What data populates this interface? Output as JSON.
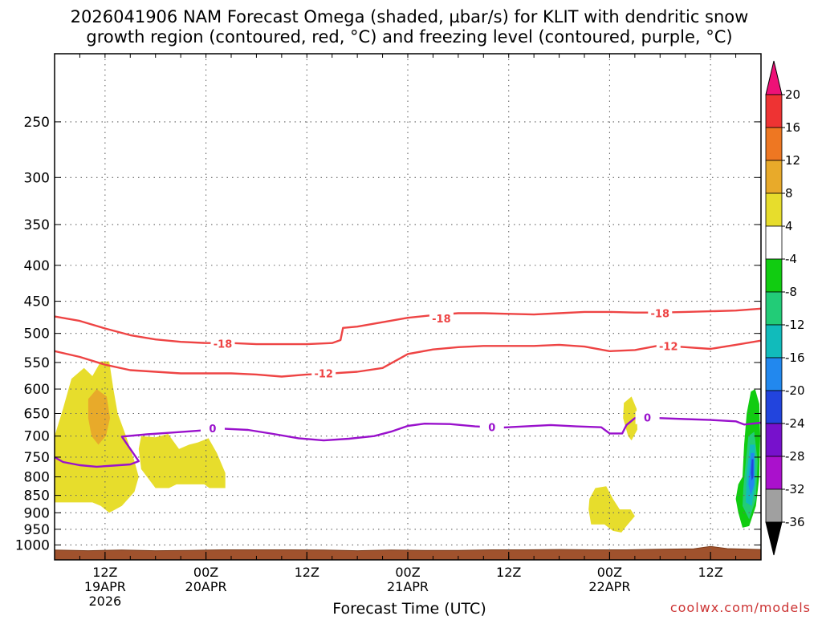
{
  "chart_data": {
    "type": "time-height",
    "title_lines": [
      "2026041906 NAM Forecast Omega (shaded, µbar/s) for KLIT with dendritic snow",
      "growth region (contoured, red, °C) and freezing level (contoured, purple, °C)"
    ],
    "xlabel": "Forecast Time (UTC)",
    "credit": "coolwx.com/models",
    "x_range_hours": [
      6,
      90
    ],
    "x_ticks": [
      {
        "hour": 12,
        "lines": [
          "12Z",
          "19APR",
          "2026"
        ]
      },
      {
        "hour": 24,
        "lines": [
          "00Z",
          "20APR"
        ]
      },
      {
        "hour": 36,
        "lines": [
          "12Z"
        ]
      },
      {
        "hour": 48,
        "lines": [
          "00Z",
          "21APR"
        ]
      },
      {
        "hour": 60,
        "lines": [
          "12Z"
        ]
      },
      {
        "hour": 72,
        "lines": [
          "00Z",
          "22APR"
        ]
      },
      {
        "hour": 84,
        "lines": [
          "12Z"
        ]
      }
    ],
    "y_scale": "log-pressure",
    "y_range_mb": [
      200,
      1050
    ],
    "y_ticks": [
      "250",
      "300",
      "350",
      "400",
      "450",
      "500",
      "550",
      "600",
      "650",
      "700",
      "750",
      "800",
      "850",
      "900",
      "950",
      "1000"
    ],
    "grid": "dotted",
    "colorbar": {
      "unit": "µbar/s",
      "labels": [
        "20",
        "16",
        "12",
        "8",
        "4",
        "-4",
        "-8",
        "-12",
        "-16",
        "-20",
        "-24",
        "-28",
        "-32",
        "-36"
      ],
      "bins": [
        {
          "range": [
            20,
            24
          ],
          "color": "#ee1177"
        },
        {
          "range": [
            16,
            20
          ],
          "color": "#ee3333"
        },
        {
          "range": [
            12,
            16
          ],
          "color": "#ee7722"
        },
        {
          "range": [
            8,
            12
          ],
          "color": "#e8aa2a"
        },
        {
          "range": [
            4,
            8
          ],
          "color": "#e7dd2c"
        },
        {
          "range": [
            -4,
            4
          ],
          "color": "#ffffff"
        },
        {
          "range": [
            -8,
            -4
          ],
          "color": "#11cc11"
        },
        {
          "range": [
            -12,
            -8
          ],
          "color": "#22cc77"
        },
        {
          "range": [
            -16,
            -12
          ],
          "color": "#11bbbb"
        },
        {
          "range": [
            -20,
            -16
          ],
          "color": "#2288ee"
        },
        {
          "range": [
            -24,
            -20
          ],
          "color": "#2244dd"
        },
        {
          "range": [
            -28,
            -24
          ],
          "color": "#7711cc"
        },
        {
          "range": [
            -32,
            -28
          ],
          "color": "#aa11cc"
        },
        {
          "range": [
            -36,
            -32
          ],
          "color": "#a0a0a0"
        },
        {
          "range": [
            -40,
            -36
          ],
          "color": "#000000"
        }
      ]
    },
    "contours": [
      {
        "level": "-18",
        "color": "#ee4444",
        "points": [
          [
            6,
            473
          ],
          [
            9,
            480
          ],
          [
            12,
            492
          ],
          [
            15,
            503
          ],
          [
            18,
            510
          ],
          [
            21,
            514
          ],
          [
            24,
            516
          ],
          [
            27,
            516
          ],
          [
            30,
            518
          ],
          [
            33,
            518
          ],
          [
            36,
            518
          ],
          [
            39,
            516
          ],
          [
            40,
            511
          ],
          [
            40.3,
            491
          ],
          [
            42,
            489
          ],
          [
            45,
            482
          ],
          [
            48,
            475
          ],
          [
            51,
            471
          ],
          [
            54,
            468
          ],
          [
            57,
            468
          ],
          [
            60,
            469
          ],
          [
            63,
            470
          ],
          [
            66,
            468
          ],
          [
            69,
            466
          ],
          [
            72,
            466
          ],
          [
            75,
            467
          ],
          [
            78,
            467
          ],
          [
            81,
            466
          ],
          [
            84,
            465
          ],
          [
            87,
            464
          ],
          [
            90,
            461
          ]
        ],
        "labels": [
          {
            "hour": 26,
            "mb": 517
          },
          {
            "hour": 52,
            "mb": 476
          },
          {
            "hour": 78,
            "mb": 468
          }
        ]
      },
      {
        "level": "-12",
        "color": "#ee4444",
        "points": [
          [
            6,
            530
          ],
          [
            9,
            540
          ],
          [
            12,
            554
          ],
          [
            15,
            564
          ],
          [
            18,
            567
          ],
          [
            21,
            570
          ],
          [
            24,
            570
          ],
          [
            27,
            570
          ],
          [
            30,
            572
          ],
          [
            33,
            576
          ],
          [
            36,
            572
          ],
          [
            39,
            570
          ],
          [
            42,
            567
          ],
          [
            45,
            560
          ],
          [
            48,
            535
          ],
          [
            51,
            527
          ],
          [
            54,
            523
          ],
          [
            57,
            521
          ],
          [
            60,
            521
          ],
          [
            63,
            521
          ],
          [
            66,
            519
          ],
          [
            69,
            522
          ],
          [
            72,
            530
          ],
          [
            75,
            528
          ],
          [
            78,
            520
          ],
          [
            81,
            523
          ],
          [
            84,
            526
          ],
          [
            87,
            519
          ],
          [
            90,
            512
          ]
        ],
        "labels": [
          {
            "hour": 38,
            "mb": 570
          },
          {
            "hour": 79,
            "mb": 521
          }
        ]
      },
      {
        "level": "0",
        "color": "#9911cc",
        "points": [
          [
            6,
            750
          ],
          [
            7,
            762
          ],
          [
            9,
            770
          ],
          [
            11,
            774
          ],
          [
            13,
            771
          ],
          [
            15,
            768
          ],
          [
            16,
            760
          ],
          [
            15,
            730
          ],
          [
            14,
            701
          ],
          [
            17,
            696
          ],
          [
            20,
            692
          ],
          [
            23,
            688
          ],
          [
            26,
            683
          ],
          [
            29,
            686
          ],
          [
            32,
            695
          ],
          [
            35,
            705
          ],
          [
            38,
            710
          ],
          [
            41,
            706
          ],
          [
            44,
            700
          ],
          [
            46,
            690
          ],
          [
            48,
            677
          ],
          [
            50,
            672
          ],
          [
            53,
            673
          ],
          [
            56,
            678
          ],
          [
            59,
            681
          ],
          [
            62,
            678
          ],
          [
            65,
            675
          ],
          [
            68,
            678
          ],
          [
            71,
            680
          ],
          [
            72,
            694
          ],
          [
            73.5,
            694
          ],
          [
            74,
            675
          ],
          [
            75,
            660
          ],
          [
            78,
            660
          ],
          [
            81,
            662
          ],
          [
            84,
            664
          ],
          [
            87,
            667
          ],
          [
            88,
            674
          ],
          [
            90,
            670
          ]
        ],
        "labels": [
          {
            "hour": 24.8,
            "mb": 682
          },
          {
            "hour": 58,
            "mb": 680
          },
          {
            "hour": 76.5,
            "mb": 659
          }
        ]
      }
    ],
    "shaded_areas": [
      {
        "value_range": [
          4,
          8
        ],
        "color": "#e7dd2c",
        "points": [
          [
            6,
            700
          ],
          [
            7,
            640
          ],
          [
            8,
            580
          ],
          [
            9.5,
            560
          ],
          [
            10.5,
            575
          ],
          [
            11.5,
            548
          ],
          [
            12.5,
            548
          ],
          [
            13,
            600
          ],
          [
            13.5,
            650
          ],
          [
            14.5,
            700
          ],
          [
            15.5,
            760
          ],
          [
            16,
            800
          ],
          [
            15.5,
            840
          ],
          [
            14,
            880
          ],
          [
            12.5,
            900
          ],
          [
            11.5,
            880
          ],
          [
            10.5,
            870
          ],
          [
            8,
            870
          ],
          [
            7,
            870
          ],
          [
            6,
            870
          ]
        ]
      },
      {
        "value_range": [
          8,
          12
        ],
        "color": "#e8aa2a",
        "points": [
          [
            10,
            620
          ],
          [
            11,
            600
          ],
          [
            12.2,
            615
          ],
          [
            12.6,
            660
          ],
          [
            12.1,
            700
          ],
          [
            11.2,
            720
          ],
          [
            10.4,
            700
          ],
          [
            10,
            660
          ]
        ]
      },
      {
        "value_range": [
          4,
          8
        ],
        "color": "#e7dd2c",
        "points": [
          [
            16,
            730
          ],
          [
            16.3,
            700
          ],
          [
            18,
            703
          ],
          [
            19.5,
            695
          ],
          [
            20.8,
            730
          ],
          [
            22,
            720
          ],
          [
            23,
            715
          ],
          [
            24.3,
            705
          ],
          [
            25.3,
            740
          ],
          [
            26.3,
            790
          ],
          [
            26.3,
            830
          ],
          [
            24.4,
            830
          ],
          [
            23.8,
            820
          ],
          [
            20.5,
            820
          ],
          [
            19.6,
            830
          ],
          [
            18,
            830
          ],
          [
            17.5,
            815
          ],
          [
            16.3,
            780
          ]
        ]
      },
      {
        "value_range": [
          4,
          8
        ],
        "color": "#e7dd2c",
        "points": [
          [
            73.7,
            628
          ],
          [
            74.6,
            615
          ],
          [
            75.2,
            640
          ],
          [
            75.3,
            685
          ],
          [
            74.6,
            710
          ],
          [
            74.2,
            700
          ],
          [
            73.6,
            660
          ]
        ]
      },
      {
        "value_range": [
          4,
          8
        ],
        "color": "#e7dd2c",
        "points": [
          [
            69.6,
            860
          ],
          [
            70.3,
            830
          ],
          [
            71.6,
            825
          ],
          [
            72.4,
            860
          ],
          [
            73.2,
            890
          ],
          [
            74.5,
            890
          ],
          [
            75,
            910
          ],
          [
            74,
            940
          ],
          [
            73.4,
            960
          ],
          [
            72.4,
            955
          ],
          [
            71.4,
            935
          ],
          [
            69.8,
            935
          ],
          [
            69.5,
            890
          ]
        ]
      },
      {
        "value_range": [
          -8,
          -4
        ],
        "color": "#11cc11",
        "points": [
          [
            88.8,
            605
          ],
          [
            89.3,
            600
          ],
          [
            89.8,
            630
          ],
          [
            89.9,
            700
          ],
          [
            89.8,
            800
          ],
          [
            89.4,
            880
          ],
          [
            88.6,
            940
          ],
          [
            87.8,
            945
          ],
          [
            87.3,
            900
          ],
          [
            87,
            860
          ],
          [
            87.3,
            820
          ],
          [
            87.8,
            800
          ],
          [
            88,
            720
          ],
          [
            88.3,
            650
          ]
        ]
      },
      {
        "value_range": [
          -12,
          -8
        ],
        "color": "#22cc77",
        "points": [
          [
            88.5,
            700
          ],
          [
            89.2,
            690
          ],
          [
            89.6,
            760
          ],
          [
            89.4,
            860
          ],
          [
            88.6,
            920
          ],
          [
            87.8,
            880
          ],
          [
            87.9,
            830
          ],
          [
            88.2,
            760
          ]
        ]
      },
      {
        "value_range": [
          -16,
          -12
        ],
        "color": "#11bbbb",
        "points": [
          [
            88.7,
            720
          ],
          [
            89.3,
            720
          ],
          [
            89.3,
            820
          ],
          [
            88.9,
            880
          ],
          [
            88.2,
            870
          ],
          [
            88.3,
            790
          ]
        ]
      },
      {
        "value_range": [
          -20,
          -16
        ],
        "color": "#2288ee",
        "points": [
          [
            88.8,
            740
          ],
          [
            89.2,
            740
          ],
          [
            89.2,
            820
          ],
          [
            88.8,
            850
          ],
          [
            88.5,
            820
          ]
        ]
      },
      {
        "value_range": [
          -24,
          -20
        ],
        "color": "#2244dd",
        "points": [
          [
            88.9,
            755
          ],
          [
            89.1,
            755
          ],
          [
            89.1,
            800
          ],
          [
            88.9,
            810
          ],
          [
            88.8,
            790
          ]
        ]
      }
    ],
    "surface_pressure": {
      "color": "#a0522d",
      "points": [
        [
          6,
          1017
        ],
        [
          10,
          1019
        ],
        [
          14,
          1017
        ],
        [
          18,
          1019
        ],
        [
          22,
          1018
        ],
        [
          26,
          1016
        ],
        [
          30,
          1016
        ],
        [
          34,
          1016
        ],
        [
          38,
          1017
        ],
        [
          42,
          1019
        ],
        [
          46,
          1017
        ],
        [
          50,
          1018
        ],
        [
          54,
          1018
        ],
        [
          58,
          1016
        ],
        [
          62,
          1016
        ],
        [
          66,
          1015
        ],
        [
          70,
          1016
        ],
        [
          74,
          1016
        ],
        [
          78,
          1014
        ],
        [
          82,
          1013
        ],
        [
          84,
          1005
        ],
        [
          86,
          1012
        ],
        [
          90,
          1015
        ]
      ]
    }
  }
}
